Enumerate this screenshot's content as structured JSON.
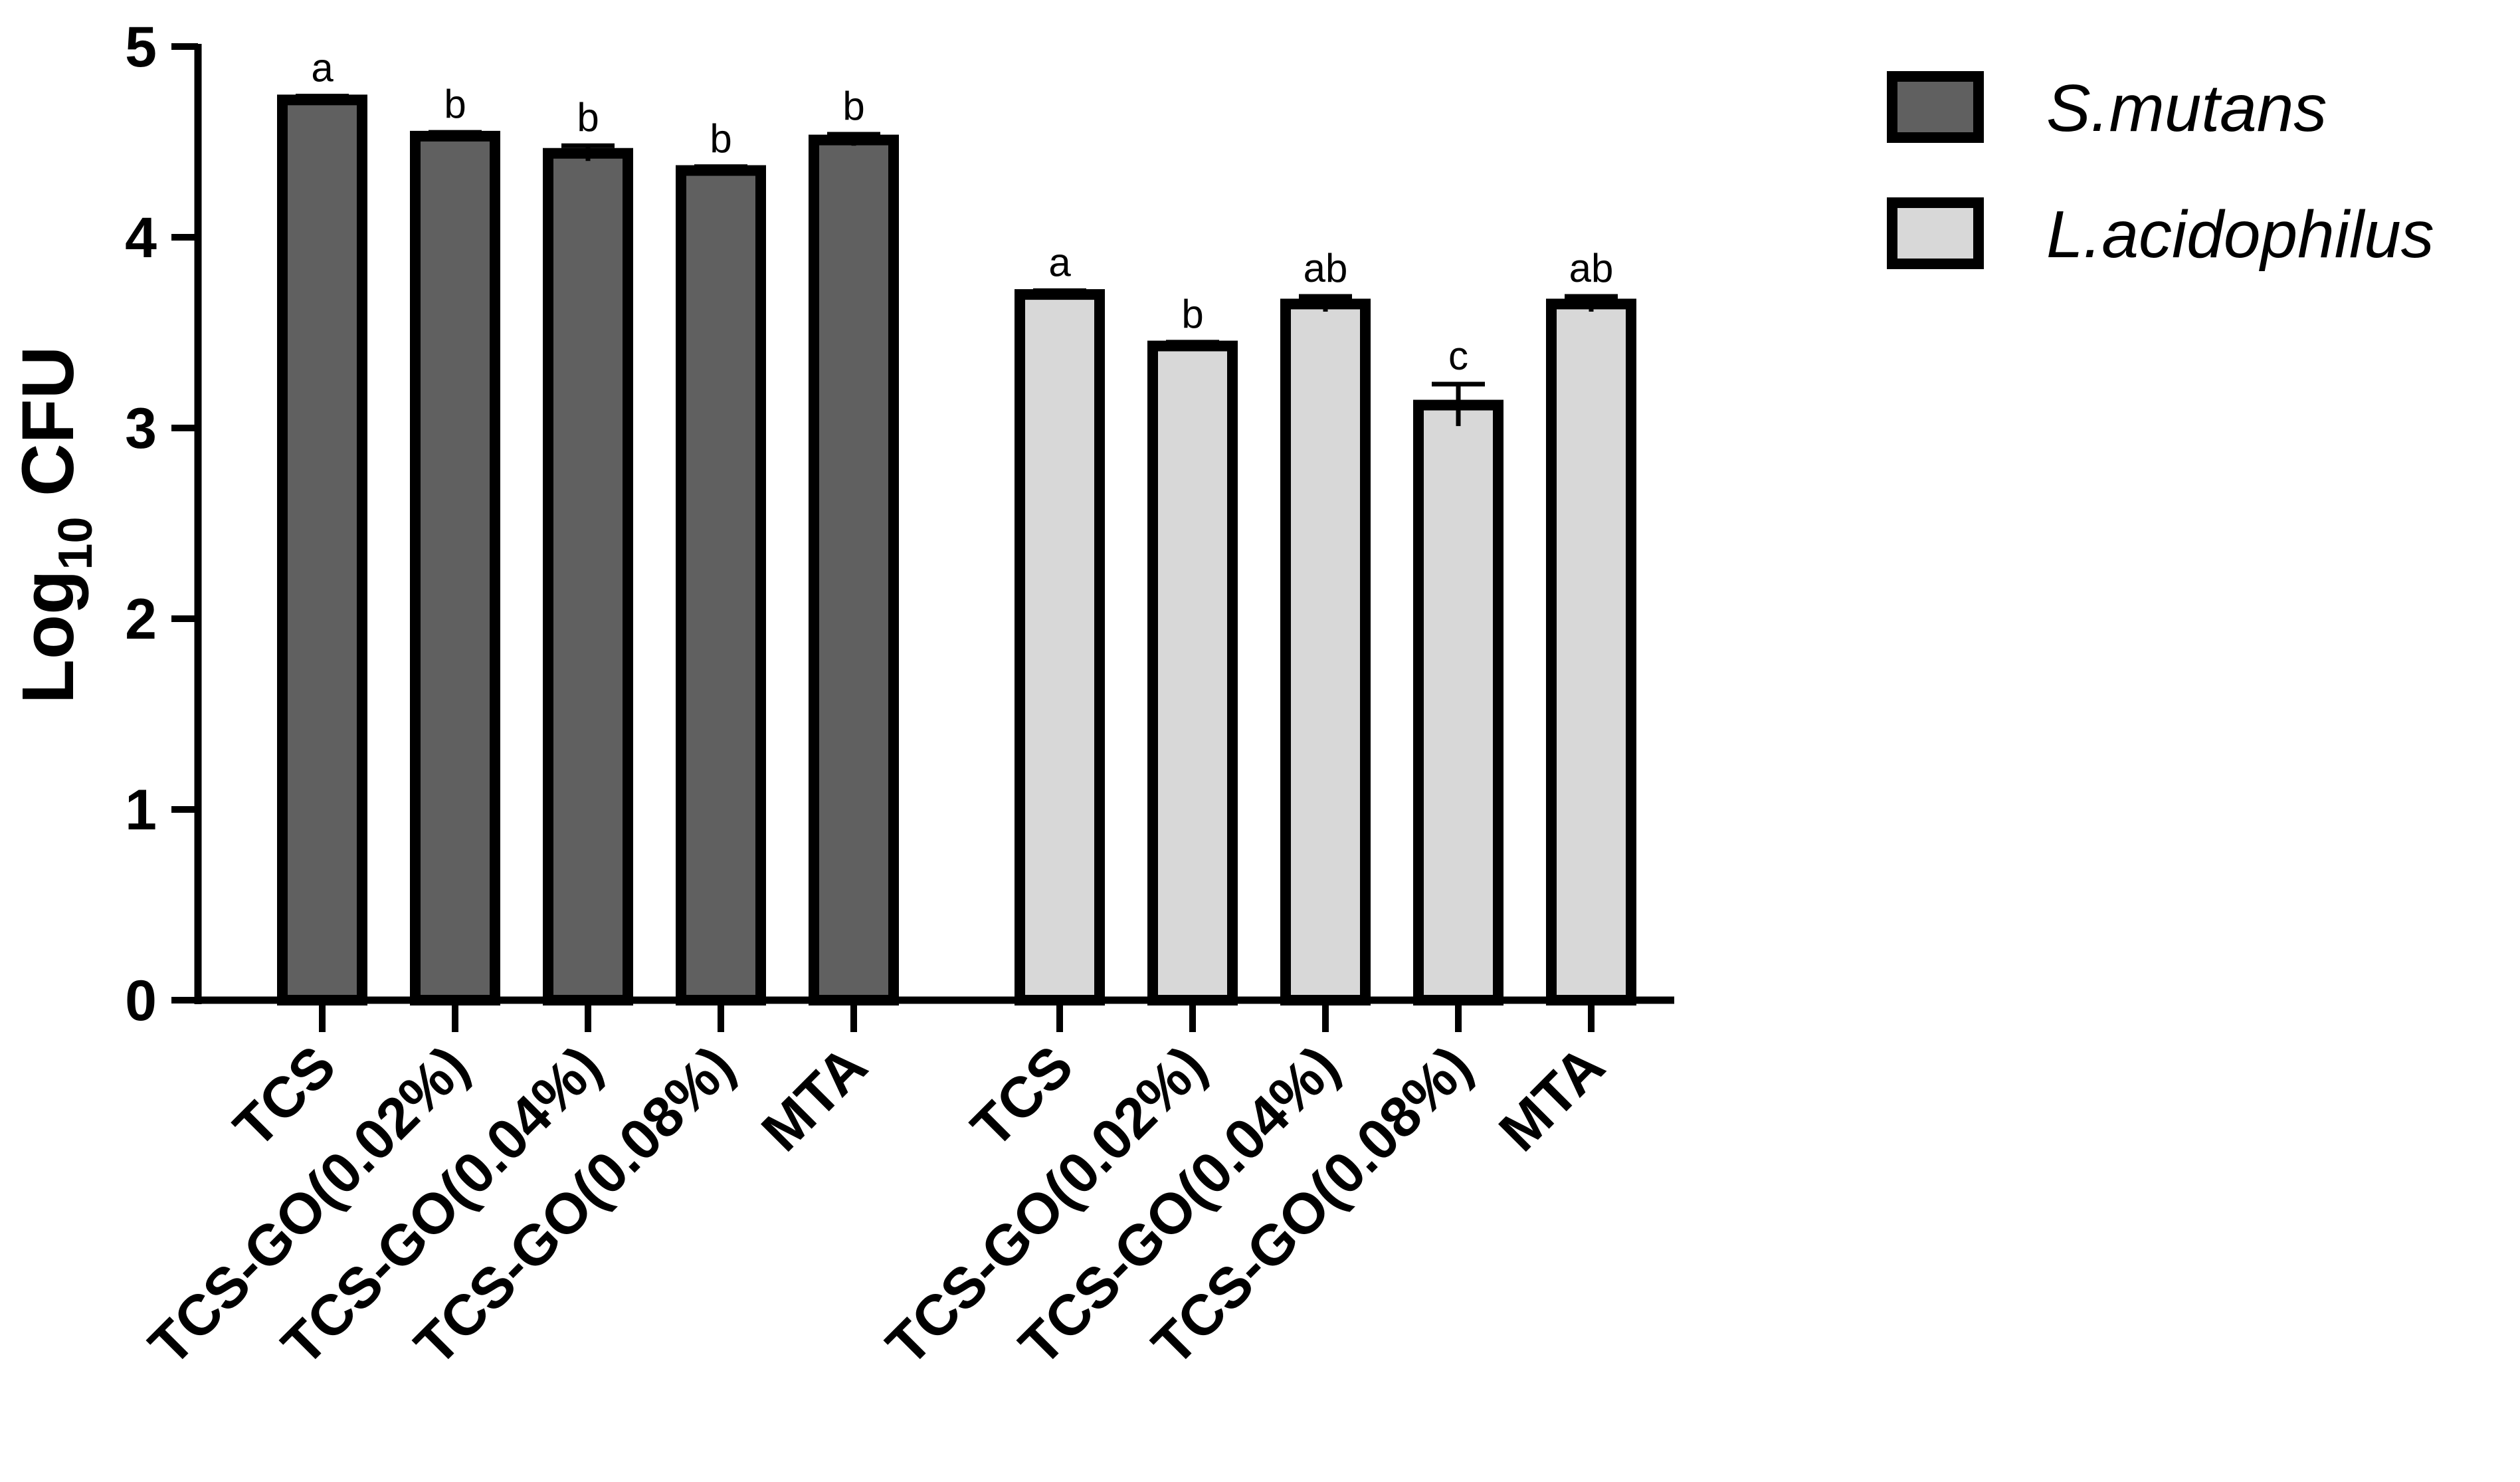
{
  "chart_data": {
    "type": "bar",
    "ylabel": {
      "main": "Log",
      "sub": "10",
      "unit": " CFU"
    },
    "ylim": [
      0,
      5
    ],
    "yticks": [
      0,
      1,
      2,
      3,
      4,
      5
    ],
    "grid": false,
    "legend_position": "top-right",
    "series": [
      {
        "name": "S.mutans",
        "color": "#606060",
        "categories": [
          "TCS",
          "TCS-GO(0.02%)",
          "TCS-GO(0.04%)",
          "TCS-GO(0.08%)",
          "MTA"
        ],
        "values": [
          4.72,
          4.53,
          4.44,
          4.35,
          4.51
        ],
        "errors": [
          0.02,
          0.02,
          0.04,
          0.02,
          0.03
        ],
        "significance": [
          "a",
          "b",
          "b",
          "b",
          "b"
        ]
      },
      {
        "name": "L.acidophilus",
        "color": "#d8d8d8",
        "categories": [
          "TCS",
          "TCS-GO(0.02%)",
          "TCS-GO(0.04%)",
          "TCS-GO(0.08%)",
          "MTA"
        ],
        "values": [
          3.7,
          3.43,
          3.65,
          3.12,
          3.65
        ],
        "errors": [
          0.02,
          0.02,
          0.04,
          0.11,
          0.04
        ],
        "significance": [
          "a",
          "b",
          "ab",
          "c",
          "ab"
        ]
      }
    ]
  }
}
